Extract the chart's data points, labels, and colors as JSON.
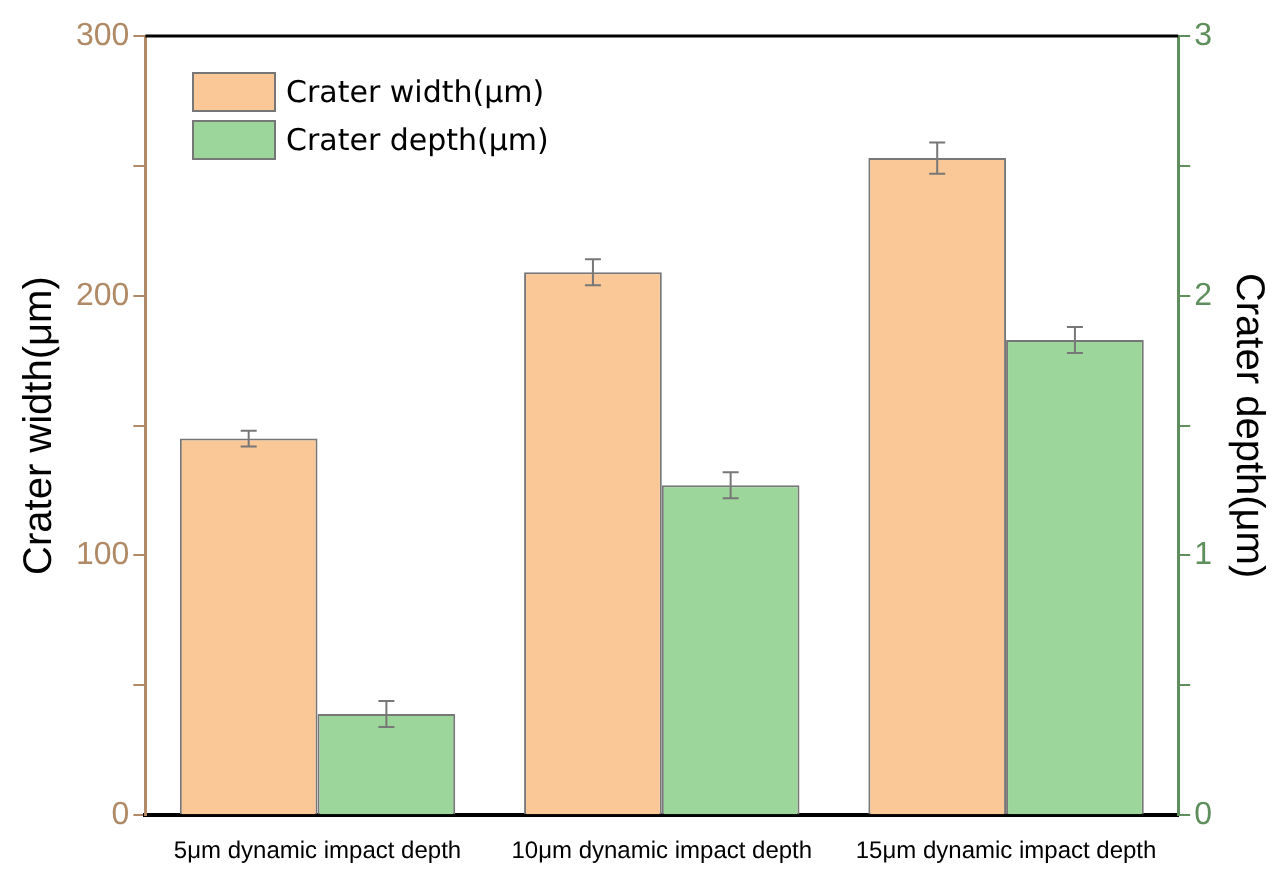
{
  "chart_data": {
    "type": "bar",
    "categories": [
      "5μm dynamic impact depth",
      "10μm dynamic impact depth",
      "15μm dynamic impact depth"
    ],
    "series": [
      {
        "name": "Crater width(μm)",
        "color": "#fac796",
        "values": [
          145,
          209,
          253
        ],
        "errors": [
          3,
          5,
          6
        ]
      },
      {
        "name": "Crater depth(μm)",
        "color": "#9dd69b",
        "values": [
          0.39,
          1.27,
          1.83
        ],
        "errors": [
          0.05,
          0.05,
          0.05
        ],
        "axis": "y2"
      }
    ],
    "ylabel": "Crater width(μm)",
    "y2label": "Crater depth(μm)",
    "ylim": [
      0,
      300
    ],
    "yticks": [
      0,
      {
        "value": 50,
        "label": null
      },
      100,
      {
        "value": 150,
        "label": null
      },
      200,
      {
        "value": 250,
        "label": null
      },
      300
    ],
    "y2lim": [
      0,
      3
    ],
    "y2ticks": [
      0,
      {
        "value": 0.5,
        "label": null
      },
      1,
      {
        "value": 1.5,
        "label": null
      },
      2,
      {
        "value": 2.5,
        "label": null
      },
      3
    ],
    "grid": false,
    "legend": "top left"
  }
}
